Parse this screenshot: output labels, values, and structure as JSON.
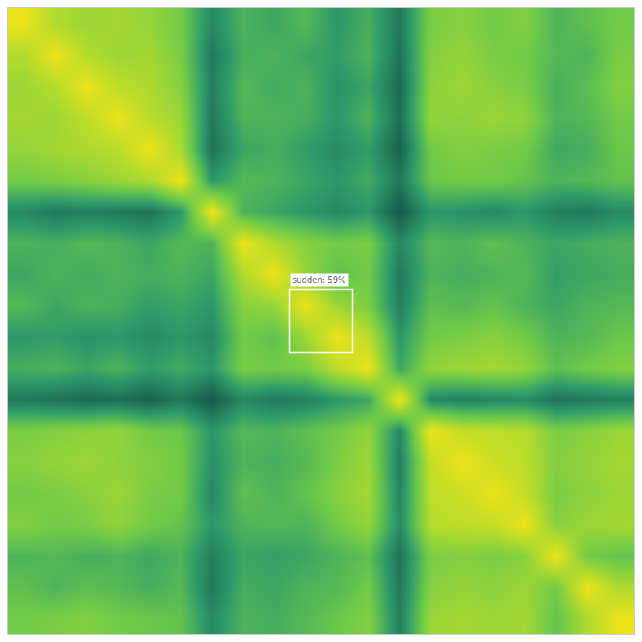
{
  "chart_data": {
    "type": "heatmap",
    "tick_labels": false,
    "grid": false,
    "xlim": [
      -0.5,
      19.5
    ],
    "ylim": [
      19.5,
      -0.5
    ],
    "zlim": [
      0.3,
      1.0
    ],
    "cells": [
      [
        1.0,
        0.85,
        0.8,
        0.82,
        0.78,
        0.7,
        0.45,
        0.6,
        0.55,
        0.62,
        0.5,
        0.58,
        0.4,
        0.72,
        0.75,
        0.7,
        0.74,
        0.6,
        0.65,
        0.7
      ],
      [
        0.85,
        1.0,
        0.86,
        0.8,
        0.82,
        0.72,
        0.4,
        0.58,
        0.6,
        0.55,
        0.52,
        0.6,
        0.38,
        0.74,
        0.78,
        0.72,
        0.7,
        0.62,
        0.6,
        0.72
      ],
      [
        0.8,
        0.86,
        1.0,
        0.88,
        0.84,
        0.75,
        0.42,
        0.62,
        0.57,
        0.6,
        0.48,
        0.55,
        0.35,
        0.76,
        0.8,
        0.75,
        0.72,
        0.58,
        0.64,
        0.74
      ],
      [
        0.82,
        0.8,
        0.88,
        1.0,
        0.87,
        0.8,
        0.4,
        0.6,
        0.6,
        0.58,
        0.5,
        0.6,
        0.37,
        0.78,
        0.76,
        0.8,
        0.77,
        0.6,
        0.62,
        0.7
      ],
      [
        0.78,
        0.82,
        0.84,
        0.87,
        1.0,
        0.83,
        0.38,
        0.55,
        0.58,
        0.52,
        0.46,
        0.52,
        0.33,
        0.7,
        0.74,
        0.72,
        0.7,
        0.56,
        0.58,
        0.68
      ],
      [
        0.7,
        0.72,
        0.75,
        0.8,
        0.83,
        1.0,
        0.5,
        0.62,
        0.6,
        0.55,
        0.5,
        0.57,
        0.4,
        0.68,
        0.7,
        0.7,
        0.66,
        0.6,
        0.62,
        0.66
      ],
      [
        0.45,
        0.4,
        0.42,
        0.4,
        0.38,
        0.5,
        1.0,
        0.6,
        0.55,
        0.5,
        0.45,
        0.5,
        0.3,
        0.5,
        0.48,
        0.45,
        0.5,
        0.42,
        0.4,
        0.46
      ],
      [
        0.6,
        0.58,
        0.62,
        0.6,
        0.55,
        0.62,
        0.6,
        1.0,
        0.84,
        0.75,
        0.7,
        0.72,
        0.45,
        0.62,
        0.6,
        0.65,
        0.6,
        0.55,
        0.58,
        0.6
      ],
      [
        0.55,
        0.6,
        0.57,
        0.6,
        0.58,
        0.6,
        0.55,
        0.84,
        1.0,
        0.78,
        0.65,
        0.7,
        0.4,
        0.6,
        0.58,
        0.6,
        0.62,
        0.52,
        0.55,
        0.58
      ],
      [
        0.62,
        0.55,
        0.6,
        0.58,
        0.52,
        0.55,
        0.5,
        0.75,
        0.78,
        1.0,
        0.8,
        0.72,
        0.42,
        0.65,
        0.62,
        0.66,
        0.6,
        0.55,
        0.6,
        0.62
      ],
      [
        0.5,
        0.52,
        0.48,
        0.5,
        0.46,
        0.5,
        0.45,
        0.7,
        0.65,
        0.8,
        1.0,
        0.88,
        0.5,
        0.7,
        0.72,
        0.75,
        0.7,
        0.6,
        0.62,
        0.68
      ],
      [
        0.58,
        0.6,
        0.55,
        0.6,
        0.52,
        0.57,
        0.5,
        0.72,
        0.7,
        0.72,
        0.88,
        1.0,
        0.55,
        0.78,
        0.8,
        0.82,
        0.78,
        0.65,
        0.7,
        0.74
      ],
      [
        0.4,
        0.38,
        0.35,
        0.37,
        0.33,
        0.4,
        0.3,
        0.45,
        0.4,
        0.42,
        0.5,
        0.55,
        1.0,
        0.45,
        0.42,
        0.44,
        0.46,
        0.38,
        0.4,
        0.42
      ],
      [
        0.72,
        0.74,
        0.76,
        0.78,
        0.7,
        0.68,
        0.5,
        0.62,
        0.6,
        0.65,
        0.7,
        0.78,
        0.45,
        1.0,
        0.9,
        0.88,
        0.86,
        0.72,
        0.75,
        0.8
      ],
      [
        0.75,
        0.78,
        0.8,
        0.76,
        0.74,
        0.7,
        0.48,
        0.6,
        0.58,
        0.62,
        0.72,
        0.8,
        0.42,
        0.9,
        1.0,
        0.92,
        0.88,
        0.74,
        0.78,
        0.82
      ],
      [
        0.7,
        0.72,
        0.75,
        0.8,
        0.72,
        0.7,
        0.45,
        0.65,
        0.6,
        0.66,
        0.75,
        0.82,
        0.44,
        0.88,
        0.92,
        1.0,
        0.9,
        0.72,
        0.76,
        0.8
      ],
      [
        0.74,
        0.7,
        0.72,
        0.77,
        0.7,
        0.66,
        0.5,
        0.6,
        0.62,
        0.6,
        0.7,
        0.78,
        0.46,
        0.86,
        0.88,
        0.9,
        1.0,
        0.75,
        0.8,
        0.82
      ],
      [
        0.6,
        0.62,
        0.58,
        0.6,
        0.56,
        0.6,
        0.42,
        0.55,
        0.52,
        0.55,
        0.6,
        0.65,
        0.38,
        0.72,
        0.74,
        0.72,
        0.75,
        1.0,
        0.7,
        0.66
      ],
      [
        0.65,
        0.6,
        0.64,
        0.62,
        0.58,
        0.62,
        0.4,
        0.58,
        0.55,
        0.6,
        0.62,
        0.7,
        0.4,
        0.75,
        0.78,
        0.76,
        0.8,
        0.7,
        1.0,
        0.84
      ],
      [
        0.7,
        0.72,
        0.74,
        0.7,
        0.68,
        0.66,
        0.46,
        0.6,
        0.58,
        0.62,
        0.68,
        0.74,
        0.42,
        0.8,
        0.82,
        0.8,
        0.82,
        0.66,
        0.84,
        1.0
      ]
    ],
    "boxes": [
      {
        "label": "sudden: 59%",
        "x": [
          8.5,
          10.5
        ],
        "y": [
          8.5,
          10.5
        ]
      }
    ]
  }
}
